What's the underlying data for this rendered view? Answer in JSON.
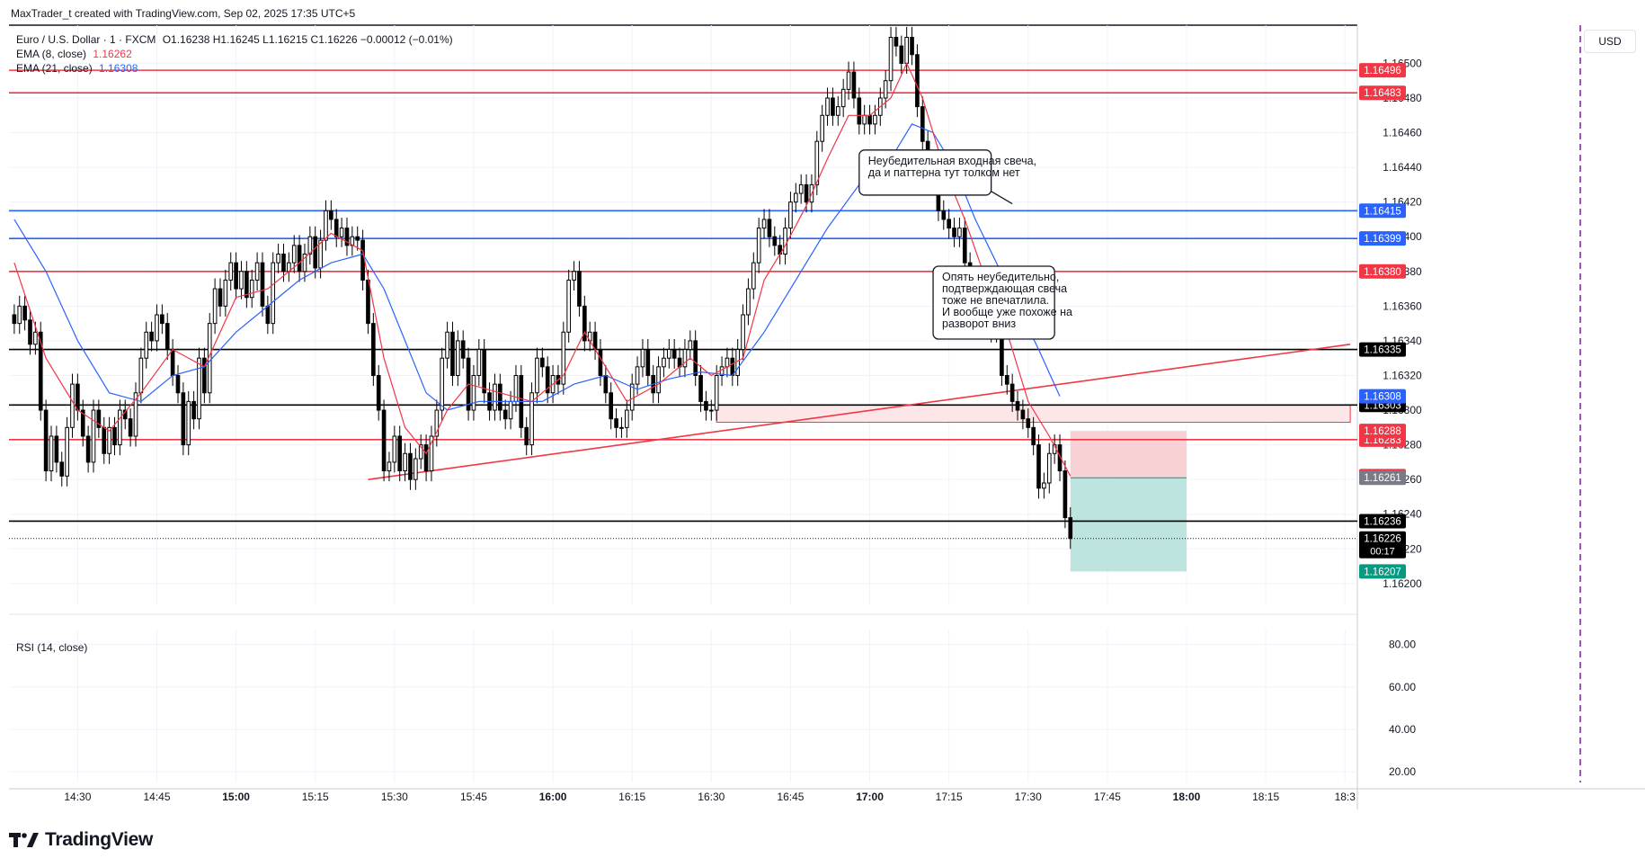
{
  "attribution": "MaxTrader_t created with TradingView.com, Sep 02, 2025 17:35 UTC+5",
  "legend": {
    "symbol": "Euro / U.S. Dollar · 1 · FXCM",
    "ohlc": "O1.16238 H1.16245 L1.16215 C1.16226 −0.00012 (−0.01%)",
    "ema8_label": "EMA (8, close)",
    "ema8_value": "1.16262",
    "ema21_label": "EMA (21, close)",
    "ema21_value": "1.16308"
  },
  "currency_button": "USD",
  "rsi_label": "RSI (14, close)",
  "logo_text": "TradingView",
  "colors": {
    "up": "#ffffff",
    "down": "#000000",
    "ema8": "#f23645",
    "ema21": "#2962ff",
    "short_sl": "#f7c9cd",
    "short_tp": "#b2dfd8"
  },
  "chart_data": {
    "type": "candlestick",
    "symbol": "EURUSD",
    "timeframe": "1 minute",
    "price_axis": {
      "ticks": [
        "1.16500",
        "1.16480",
        "1.16460",
        "1.16440",
        "1.16420",
        "1.16400",
        "1.16380",
        "1.16360",
        "1.16340",
        "1.16320",
        "1.16300",
        "1.16280",
        "1.16260",
        "1.16240",
        "1.16220",
        "1.16200"
      ],
      "range": [
        1.16188,
        1.16522
      ]
    },
    "rsi_axis": {
      "ticks": [
        "80.00",
        "60.00",
        "40.00",
        "20.00"
      ]
    },
    "time_axis": {
      "ticks": [
        {
          "label": "14:30",
          "min": 870,
          "bold": false
        },
        {
          "label": "14:45",
          "min": 885,
          "bold": false
        },
        {
          "label": "15:00",
          "min": 900,
          "bold": true
        },
        {
          "label": "15:15",
          "min": 915,
          "bold": false
        },
        {
          "label": "15:30",
          "min": 930,
          "bold": false
        },
        {
          "label": "15:45",
          "min": 945,
          "bold": false
        },
        {
          "label": "16:00",
          "min": 960,
          "bold": true
        },
        {
          "label": "16:15",
          "min": 975,
          "bold": false
        },
        {
          "label": "16:30",
          "min": 990,
          "bold": false
        },
        {
          "label": "16:45",
          "min": 1005,
          "bold": false
        },
        {
          "label": "17:00",
          "min": 1020,
          "bold": true
        },
        {
          "label": "17:15",
          "min": 1035,
          "bold": false
        },
        {
          "label": "17:30",
          "min": 1050,
          "bold": false
        },
        {
          "label": "17:45",
          "min": 1065,
          "bold": false
        },
        {
          "label": "18:00",
          "min": 1080,
          "bold": true
        },
        {
          "label": "18:15",
          "min": 1095,
          "bold": false
        },
        {
          "label": "18:3",
          "min": 1110,
          "bold": false
        }
      ],
      "range_minutes": [
        857,
        1112
      ]
    },
    "close_series": [
      [
        858,
        1.1635
      ],
      [
        859,
        1.1636
      ],
      [
        860,
        1.16352
      ],
      [
        861,
        1.16338
      ],
      [
        862,
        1.16345
      ],
      [
        863,
        1.163
      ],
      [
        864,
        1.16265
      ],
      [
        865,
        1.16285
      ],
      [
        866,
        1.1627
      ],
      [
        867,
        1.16262
      ],
      [
        868,
        1.1629
      ],
      [
        869,
        1.16315
      ],
      [
        870,
        1.163
      ],
      [
        871,
        1.16285
      ],
      [
        872,
        1.1627
      ],
      [
        873,
        1.163
      ],
      [
        874,
        1.1629
      ],
      [
        875,
        1.16275
      ],
      [
        876,
        1.1629
      ],
      [
        877,
        1.1628
      ],
      [
        878,
        1.163
      ],
      [
        879,
        1.16295
      ],
      [
        880,
        1.16285
      ],
      [
        881,
        1.1631
      ],
      [
        882,
        1.1633
      ],
      [
        883,
        1.16345
      ],
      [
        884,
        1.1634
      ],
      [
        885,
        1.16355
      ],
      [
        886,
        1.1635
      ],
      [
        887,
        1.16335
      ],
      [
        888,
        1.1632
      ],
      [
        889,
        1.1631
      ],
      [
        890,
        1.1628
      ],
      [
        891,
        1.16305
      ],
      [
        892,
        1.16295
      ],
      [
        893,
        1.1633
      ],
      [
        894,
        1.1631
      ],
      [
        895,
        1.1635
      ],
      [
        896,
        1.1637
      ],
      [
        897,
        1.1636
      ],
      [
        898,
        1.16375
      ],
      [
        899,
        1.16385
      ],
      [
        900,
        1.1637
      ],
      [
        901,
        1.1638
      ],
      [
        902,
        1.16365
      ],
      [
        903,
        1.16375
      ],
      [
        904,
        1.16385
      ],
      [
        905,
        1.1636
      ],
      [
        906,
        1.1635
      ],
      [
        907,
        1.16385
      ],
      [
        908,
        1.1639
      ],
      [
        909,
        1.1638
      ],
      [
        910,
        1.16385
      ],
      [
        911,
        1.16395
      ],
      [
        912,
        1.1638
      ],
      [
        913,
        1.1639
      ],
      [
        914,
        1.164
      ],
      [
        915,
        1.16382
      ],
      [
        916,
        1.16398
      ],
      [
        917,
        1.16415
      ],
      [
        918,
        1.1641
      ],
      [
        919,
        1.164
      ],
      [
        920,
        1.16405
      ],
      [
        921,
        1.16395
      ],
      [
        922,
        1.164
      ],
      [
        923,
        1.16398
      ],
      [
        924,
        1.16375
      ],
      [
        925,
        1.1635
      ],
      [
        926,
        1.1632
      ],
      [
        927,
        1.163
      ],
      [
        928,
        1.16265
      ],
      [
        929,
        1.1627
      ],
      [
        930,
        1.16285
      ],
      [
        931,
        1.16265
      ],
      [
        932,
        1.16275
      ],
      [
        933,
        1.1626
      ],
      [
        934,
        1.16272
      ],
      [
        935,
        1.1628
      ],
      [
        936,
        1.16265
      ],
      [
        937,
        1.16285
      ],
      [
        938,
        1.163
      ],
      [
        939,
        1.1633
      ],
      [
        940,
        1.16345
      ],
      [
        941,
        1.1632
      ],
      [
        942,
        1.1634
      ],
      [
        943,
        1.1633
      ],
      [
        944,
        1.163
      ],
      [
        945,
        1.1632
      ],
      [
        946,
        1.16335
      ],
      [
        947,
        1.1631
      ],
      [
        948,
        1.163
      ],
      [
        949,
        1.16315
      ],
      [
        950,
        1.163
      ],
      [
        951,
        1.16295
      ],
      [
        952,
        1.16305
      ],
      [
        953,
        1.1632
      ],
      [
        954,
        1.1629
      ],
      [
        955,
        1.1628
      ],
      [
        956,
        1.1631
      ],
      [
        957,
        1.1633
      ],
      [
        958,
        1.16325
      ],
      [
        959,
        1.1631
      ],
      [
        960,
        1.1632
      ],
      [
        961,
        1.16315
      ],
      [
        962,
        1.16345
      ],
      [
        963,
        1.16375
      ],
      [
        964,
        1.1638
      ],
      [
        965,
        1.1636
      ],
      [
        966,
        1.1634
      ],
      [
        967,
        1.16345
      ],
      [
        968,
        1.16335
      ],
      [
        969,
        1.1632
      ],
      [
        970,
        1.1631
      ],
      [
        971,
        1.16295
      ],
      [
        972,
        1.1629
      ],
      [
        973,
        1.1629
      ],
      [
        974,
        1.163
      ],
      [
        975,
        1.16315
      ],
      [
        976,
        1.16325
      ],
      [
        977,
        1.16335
      ],
      [
        978,
        1.1632
      ],
      [
        979,
        1.1631
      ],
      [
        980,
        1.16325
      ],
      [
        981,
        1.1633
      ],
      [
        982,
        1.16335
      ],
      [
        983,
        1.1633
      ],
      [
        984,
        1.16325
      ],
      [
        985,
        1.16335
      ],
      [
        986,
        1.1634
      ],
      [
        987,
        1.1632
      ],
      [
        988,
        1.16305
      ],
      [
        989,
        1.163
      ],
      [
        990,
        1.163
      ],
      [
        991,
        1.1632
      ],
      [
        992,
        1.16325
      ],
      [
        993,
        1.1633
      ],
      [
        994,
        1.1632
      ],
      [
        995,
        1.16335
      ],
      [
        996,
        1.16355
      ],
      [
        997,
        1.1637
      ],
      [
        998,
        1.16385
      ],
      [
        999,
        1.16405
      ],
      [
        1000,
        1.1641
      ],
      [
        1001,
        1.164
      ],
      [
        1002,
        1.16395
      ],
      [
        1003,
        1.1639
      ],
      [
        1004,
        1.16405
      ],
      [
        1005,
        1.1642
      ],
      [
        1006,
        1.16425
      ],
      [
        1007,
        1.1643
      ],
      [
        1008,
        1.1642
      ],
      [
        1009,
        1.1643
      ],
      [
        1010,
        1.16455
      ],
      [
        1011,
        1.1647
      ],
      [
        1012,
        1.1648
      ],
      [
        1013,
        1.1647
      ],
      [
        1014,
        1.16475
      ],
      [
        1015,
        1.16485
      ],
      [
        1016,
        1.16495
      ],
      [
        1017,
        1.1648
      ],
      [
        1018,
        1.16465
      ],
      [
        1019,
        1.1647
      ],
      [
        1020,
        1.16465
      ],
      [
        1021,
        1.1647
      ],
      [
        1022,
        1.1648
      ],
      [
        1023,
        1.1649
      ],
      [
        1024,
        1.16515
      ],
      [
        1025,
        1.1651
      ],
      [
        1026,
        1.165
      ],
      [
        1027,
        1.16515
      ],
      [
        1028,
        1.16505
      ],
      [
        1029,
        1.16475
      ],
      [
        1030,
        1.16455
      ],
      [
        1031,
        1.16435
      ],
      [
        1032,
        1.1644
      ],
      [
        1033,
        1.16415
      ],
      [
        1034,
        1.1641
      ],
      [
        1035,
        1.16405
      ],
      [
        1036,
        1.164
      ],
      [
        1037,
        1.16405
      ],
      [
        1038,
        1.16385
      ],
      [
        1039,
        1.16365
      ],
      [
        1040,
        1.16355
      ],
      [
        1041,
        1.1636
      ],
      [
        1042,
        1.1635
      ],
      [
        1043,
        1.16345
      ],
      [
        1044,
        1.1635
      ],
      [
        1045,
        1.1632
      ],
      [
        1046,
        1.16315
      ],
      [
        1047,
        1.16305
      ],
      [
        1048,
        1.163
      ],
      [
        1049,
        1.16295
      ],
      [
        1050,
        1.1629
      ],
      [
        1051,
        1.1628
      ],
      [
        1052,
        1.16255
      ],
      [
        1053,
        1.16258
      ],
      [
        1054,
        1.16275
      ],
      [
        1055,
        1.1628
      ],
      [
        1056,
        1.16265
      ],
      [
        1057,
        1.16238
      ],
      [
        1058,
        1.16226
      ]
    ],
    "ema8_series": [
      [
        858,
        1.16385
      ],
      [
        864,
        1.1633
      ],
      [
        870,
        1.163
      ],
      [
        876,
        1.16288
      ],
      [
        882,
        1.1631
      ],
      [
        888,
        1.16335
      ],
      [
        894,
        1.16325
      ],
      [
        900,
        1.16365
      ],
      [
        906,
        1.1637
      ],
      [
        912,
        1.16385
      ],
      [
        918,
        1.16402
      ],
      [
        924,
        1.16392
      ],
      [
        928,
        1.1633
      ],
      [
        932,
        1.1629
      ],
      [
        936,
        1.16275
      ],
      [
        940,
        1.163
      ],
      [
        944,
        1.16315
      ],
      [
        950,
        1.1631
      ],
      [
        956,
        1.16305
      ],
      [
        962,
        1.1632
      ],
      [
        966,
        1.16345
      ],
      [
        970,
        1.16325
      ],
      [
        974,
        1.16305
      ],
      [
        980,
        1.16315
      ],
      [
        986,
        1.1633
      ],
      [
        990,
        1.1632
      ],
      [
        996,
        1.1633
      ],
      [
        1000,
        1.16375
      ],
      [
        1004,
        1.16395
      ],
      [
        1008,
        1.16418
      ],
      [
        1012,
        1.16445
      ],
      [
        1016,
        1.1647
      ],
      [
        1020,
        1.1647
      ],
      [
        1024,
        1.1648
      ],
      [
        1027,
        1.165
      ],
      [
        1030,
        1.1648
      ],
      [
        1034,
        1.1644
      ],
      [
        1038,
        1.1641
      ],
      [
        1042,
        1.16375
      ],
      [
        1046,
        1.16345
      ],
      [
        1050,
        1.16305
      ],
      [
        1054,
        1.16285
      ],
      [
        1058,
        1.16262
      ]
    ],
    "ema21_series": [
      [
        858,
        1.1641
      ],
      [
        864,
        1.1638
      ],
      [
        870,
        1.1634
      ],
      [
        876,
        1.1631
      ],
      [
        882,
        1.16305
      ],
      [
        888,
        1.1632
      ],
      [
        894,
        1.16325
      ],
      [
        900,
        1.16345
      ],
      [
        906,
        1.1636
      ],
      [
        912,
        1.16375
      ],
      [
        918,
        1.16385
      ],
      [
        924,
        1.1639
      ],
      [
        928,
        1.1637
      ],
      [
        932,
        1.1634
      ],
      [
        936,
        1.1631
      ],
      [
        940,
        1.163
      ],
      [
        946,
        1.16305
      ],
      [
        952,
        1.16305
      ],
      [
        958,
        1.16305
      ],
      [
        964,
        1.16315
      ],
      [
        970,
        1.1632
      ],
      [
        976,
        1.16312
      ],
      [
        982,
        1.16318
      ],
      [
        988,
        1.16322
      ],
      [
        994,
        1.1632
      ],
      [
        1000,
        1.16345
      ],
      [
        1006,
        1.16375
      ],
      [
        1012,
        1.16405
      ],
      [
        1018,
        1.1643
      ],
      [
        1024,
        1.16445
      ],
      [
        1028,
        1.16465
      ],
      [
        1032,
        1.1646
      ],
      [
        1036,
        1.1644
      ],
      [
        1040,
        1.1641
      ],
      [
        1044,
        1.16385
      ],
      [
        1048,
        1.1636
      ],
      [
        1052,
        1.16335
      ],
      [
        1056,
        1.16308
      ]
    ],
    "horizontal_levels": [
      {
        "price": 1.16496,
        "label": "1.16496",
        "color": "#f23645"
      },
      {
        "price": 1.16483,
        "label": "1.16483",
        "color": "#f23645"
      },
      {
        "price": 1.16415,
        "label": "1.16415",
        "color": "#2962ff"
      },
      {
        "price": 1.16399,
        "label": "1.16399",
        "color": "#2962ff"
      },
      {
        "price": 1.1638,
        "label": "1.16380",
        "color": "#f23645"
      },
      {
        "price": 1.16335,
        "label": "1.16335",
        "color": "#000000"
      },
      {
        "price": 1.16303,
        "label": "1.16303",
        "color": "#000000"
      },
      {
        "price": 1.16283,
        "label": "1.16283",
        "color": "#f23645"
      },
      {
        "price": 1.16236,
        "label": "1.16236",
        "color": "#000000"
      }
    ],
    "price_badges": [
      {
        "price": 1.16308,
        "label": "1.16308",
        "color": "#2962ff"
      },
      {
        "price": 1.16288,
        "label": "1.16288",
        "color": "#f23645"
      },
      {
        "price": 1.16262,
        "label": "1.16262",
        "color": "#f23645"
      },
      {
        "price": 1.16261,
        "label": "1.16261",
        "color": "#787b86"
      },
      {
        "price": 1.16226,
        "label": "1.16226",
        "color": "#000000",
        "extra": "00:17"
      },
      {
        "price": 1.16207,
        "label": "1.16207",
        "color": "#089981"
      }
    ],
    "trendline": {
      "from": [
        925,
        1.1626
      ],
      "to": [
        1111,
        1.16338
      ],
      "color": "#f23645"
    },
    "zone": {
      "from_min": 991,
      "to_min": 1111,
      "top": 1.16303,
      "bottom": 1.16293,
      "color": "#f23645"
    },
    "short_position": {
      "from_min": 1058,
      "to_min": 1080,
      "entry": 1.16261,
      "stop": 1.16288,
      "target": 1.16207
    },
    "annotations": [
      {
        "text": [
          "Неубедительная входная свеча,",
          "да и паттерна тут толком нет"
        ],
        "box": {
          "min_from": 1018,
          "min_to": 1043,
          "price_top": 1.1645,
          "price_bottom": 1.16424
        },
        "pointer": [
          1047,
          1.16419
        ]
      },
      {
        "text": [
          "Опять неубедительно,",
          "подтверждающая свеча",
          "тоже не впечатлила.",
          "И вообще уже похоже на",
          "разворот вниз"
        ],
        "box": {
          "min_from": 1032,
          "min_to": 1055,
          "price_top": 1.16383,
          "price_bottom": 1.16341
        },
        "pointer": [
          1049,
          1.1635
        ]
      }
    ]
  }
}
